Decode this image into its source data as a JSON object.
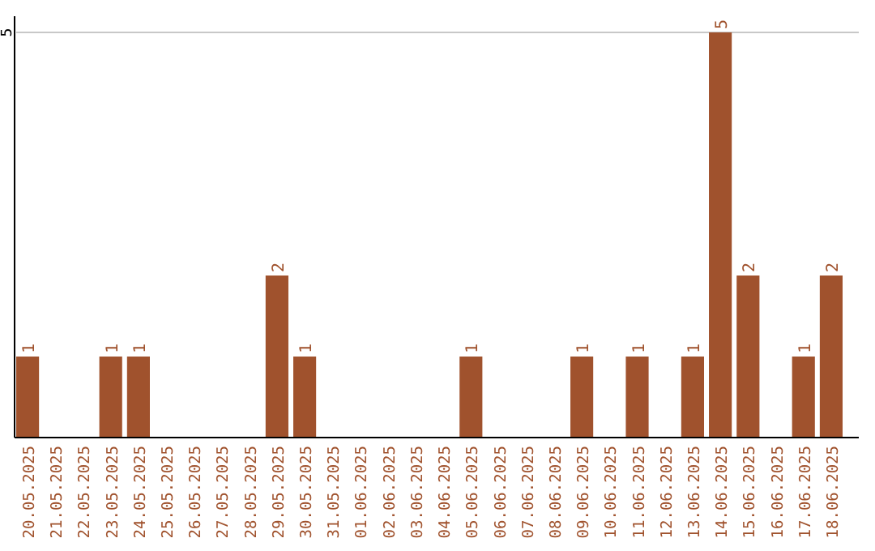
{
  "chart_data": {
    "type": "bar",
    "categories": [
      "20.05.2025",
      "21.05.2025",
      "22.05.2025",
      "23.05.2025",
      "24.05.2025",
      "25.05.2025",
      "26.05.2025",
      "27.05.2025",
      "28.05.2025",
      "29.05.2025",
      "30.05.2025",
      "31.05.2025",
      "01.06.2025",
      "02.06.2025",
      "03.06.2025",
      "04.06.2025",
      "05.06.2025",
      "06.06.2025",
      "07.06.2025",
      "08.06.2025",
      "09.06.2025",
      "10.06.2025",
      "11.06.2025",
      "12.06.2025",
      "13.06.2025",
      "14.06.2025",
      "15.06.2025",
      "16.06.2025",
      "17.06.2025",
      "18.06.2025"
    ],
    "values": [
      1,
      0,
      0,
      1,
      1,
      0,
      0,
      0,
      0,
      2,
      1,
      0,
      0,
      0,
      0,
      0,
      1,
      0,
      0,
      0,
      1,
      0,
      1,
      0,
      1,
      5,
      2,
      0,
      1,
      2
    ],
    "value_labels": [
      "1",
      null,
      null,
      "1",
      "1",
      null,
      null,
      null,
      null,
      "2",
      "1",
      null,
      null,
      null,
      null,
      null,
      "1",
      null,
      null,
      null,
      "1",
      null,
      "1",
      null,
      "1",
      "5",
      "2",
      null,
      "1",
      "2"
    ],
    "color": "#a0522d",
    "ylim": [
      0,
      5.2
    ],
    "yticks": [
      5
    ],
    "grid": "y"
  }
}
